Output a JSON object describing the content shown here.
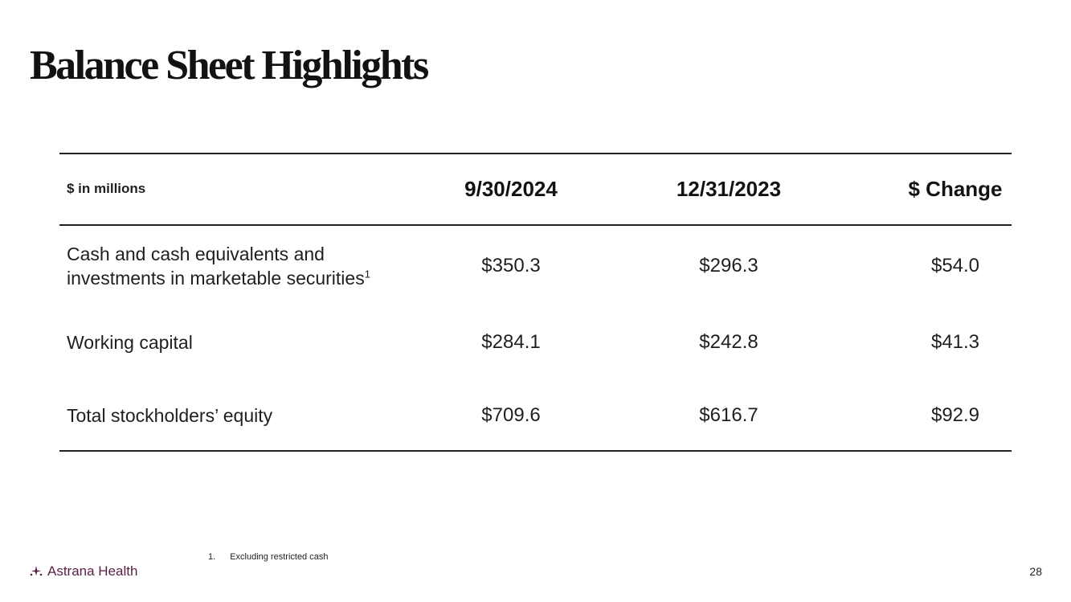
{
  "slide": {
    "title": "Balance Sheet Highlights",
    "page_number": "28"
  },
  "table": {
    "unit_label": "$ in millions",
    "columns": [
      "9/30/2024",
      "12/31/2023",
      "$ Change"
    ],
    "rows": [
      {
        "label": "Cash and cash equivalents and investments in marketable securities",
        "footnote_marker": "1",
        "values": [
          "$350.3",
          "$296.3",
          "$54.0"
        ]
      },
      {
        "label": "Working capital",
        "values": [
          "$284.1",
          "$242.8",
          "$41.3"
        ]
      },
      {
        "label": "Total stockholders’ equity",
        "values": [
          "$709.6",
          "$616.7",
          "$92.9"
        ]
      }
    ]
  },
  "footnote": {
    "number": "1.",
    "text": "Excluding restricted cash"
  },
  "brand": {
    "name": "Astrana Health",
    "icon": "sparkle-logo-icon",
    "color": "#5a1f45"
  }
}
